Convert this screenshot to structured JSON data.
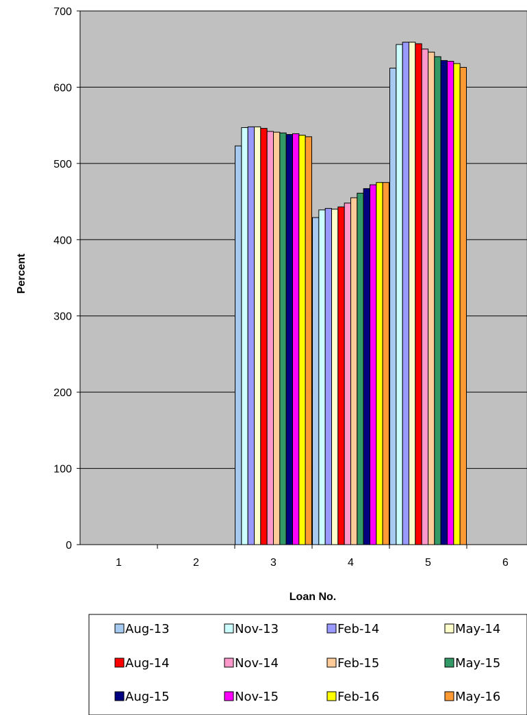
{
  "chart_data": {
    "type": "bar",
    "title": "",
    "xlabel": "Loan No.",
    "ylabel": "Percent",
    "ylim": [
      0,
      700
    ],
    "yticks": [
      0,
      100,
      200,
      300,
      400,
      500,
      600,
      700
    ],
    "categories": [
      "1",
      "2",
      "3",
      "4",
      "5",
      "6"
    ],
    "grid": true,
    "legend_position": "bottom",
    "series": [
      {
        "name": "Aug-13",
        "color": "#a6caf0",
        "values": [
          null,
          null,
          523,
          429,
          625,
          null
        ]
      },
      {
        "name": "Nov-13",
        "color": "#ccffff",
        "values": [
          null,
          null,
          547,
          439,
          656,
          null
        ]
      },
      {
        "name": "Feb-14",
        "color": "#9999ff",
        "values": [
          null,
          null,
          548,
          441,
          659,
          null
        ]
      },
      {
        "name": "May-14",
        "color": "#ffffcc",
        "values": [
          null,
          null,
          548,
          440,
          659,
          null
        ]
      },
      {
        "name": "Aug-14",
        "color": "#ff0000",
        "values": [
          null,
          null,
          546,
          443,
          657,
          null
        ]
      },
      {
        "name": "Nov-14",
        "color": "#ff99cc",
        "values": [
          null,
          null,
          542,
          448,
          650,
          null
        ]
      },
      {
        "name": "Feb-15",
        "color": "#ffcc99",
        "values": [
          null,
          null,
          541,
          455,
          646,
          null
        ]
      },
      {
        "name": "May-15",
        "color": "#339966",
        "values": [
          null,
          null,
          540,
          461,
          640,
          null
        ]
      },
      {
        "name": "Aug-15",
        "color": "#000080",
        "values": [
          null,
          null,
          538,
          467,
          635,
          null
        ]
      },
      {
        "name": "Nov-15",
        "color": "#ff00ff",
        "values": [
          null,
          null,
          539,
          472,
          634,
          null
        ]
      },
      {
        "name": "Feb-16",
        "color": "#ffff00",
        "values": [
          null,
          null,
          537,
          475,
          631,
          null
        ]
      },
      {
        "name": "May-16",
        "color": "#ff9933",
        "values": [
          null,
          null,
          535,
          475,
          626,
          null
        ]
      }
    ]
  },
  "colors": {
    "plot_background": "#c0c0c0",
    "gridline": "#000000"
  }
}
